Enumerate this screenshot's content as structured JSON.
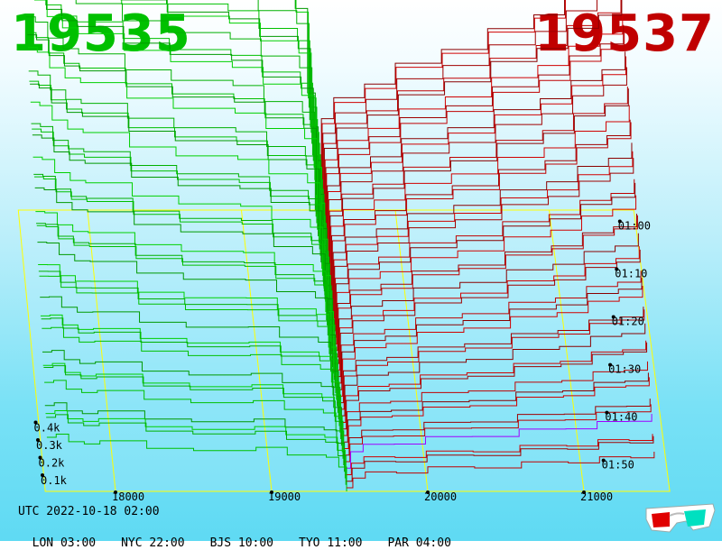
{
  "header": {
    "left_value": "19535",
    "right_value": "19537"
  },
  "colors": {
    "left": "#00c000",
    "right": "#c00000",
    "axis": "#ffff00",
    "highlight": "#a000ff"
  },
  "chart_data": {
    "type": "3d-line-waterfall",
    "x": {
      "ticks": [
        18000,
        19000,
        20000,
        21000
      ],
      "labels": [
        "18000",
        "19000",
        "20000",
        "21000"
      ]
    },
    "y": {
      "ticks": [
        0.1,
        0.2,
        0.3,
        0.4
      ],
      "labels": [
        "0.1k",
        "0.2k",
        "0.3k",
        "0.4k"
      ]
    },
    "time": {
      "ticks": [
        "01:00",
        "01:10",
        "01:20",
        "01:30",
        "01:40",
        "01:50"
      ]
    },
    "left_series": {
      "color": "#00c000",
      "profile_x": [
        17560,
        17620,
        17700,
        17800,
        17900,
        18200,
        18500,
        18900,
        19100,
        19350,
        19430,
        19480
      ]
    },
    "right_series": {
      "color": "#c00000",
      "profile_x": [
        19480,
        19520,
        19600,
        19800,
        20000,
        20300,
        20600,
        20900,
        21100,
        21300,
        21450
      ]
    },
    "slices": 44
  },
  "footer": {
    "utc": "UTC 2022-10-18 02:00",
    "cities": [
      "LON 03:00",
      "NYC 22:00",
      "BJS 10:00",
      "TYO 11:00",
      "PAR 04:00"
    ]
  }
}
